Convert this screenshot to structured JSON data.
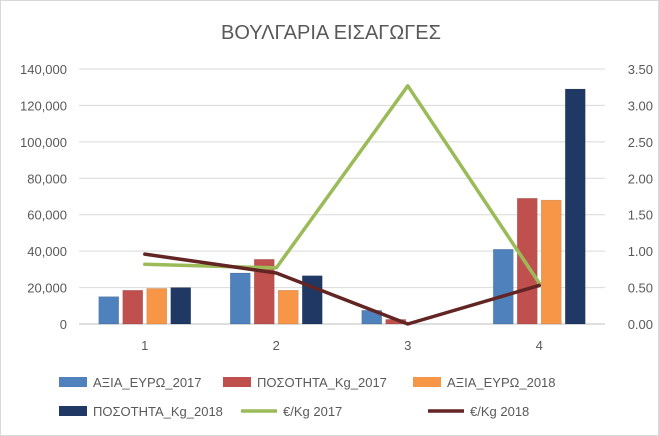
{
  "chart_data": {
    "type": "bar",
    "title": "ΒΟΥΛΓΑΡΙΑ ΕΙΣΑΓΩΓΕΣ",
    "categories": [
      "1",
      "2",
      "3",
      "4"
    ],
    "y_left": {
      "min": 0,
      "max": 140000,
      "ticks": [
        0,
        20000,
        40000,
        60000,
        80000,
        100000,
        120000,
        140000
      ],
      "tick_labels": [
        "0",
        "20,000",
        "40,000",
        "60,000",
        "80,000",
        "100,000",
        "120,000",
        "140,000"
      ]
    },
    "y_right": {
      "min": 0,
      "max": 3.5,
      "ticks": [
        0,
        0.5,
        1,
        1.5,
        2,
        2.5,
        3,
        3.5
      ],
      "tick_labels": [
        "0.00",
        "0.50",
        "1.00",
        "1.50",
        "2.00",
        "2.50",
        "3.00",
        "3.50"
      ]
    },
    "grid": true,
    "legend_position": "bottom",
    "series": [
      {
        "name": "ΑΞΙΑ_ΕΥΡΩ_2017",
        "kind": "bar",
        "axis": "left",
        "color": "#4f81bd",
        "values": [
          15000,
          28000,
          7500,
          41000
        ]
      },
      {
        "name": "ΠΟΣΟΤΗΤΑ_Kg_2017",
        "kind": "bar",
        "axis": "left",
        "color": "#c0504d",
        "values": [
          18500,
          35500,
          2500,
          69000
        ]
      },
      {
        "name": "ΑΞΙΑ_ΕΥΡΩ_2018",
        "kind": "bar",
        "axis": "left",
        "color": "#f79646",
        "values": [
          19500,
          18500,
          0,
          68000
        ]
      },
      {
        "name": "ΠΟΣΟΤΗΤΑ_Kg_2018",
        "kind": "bar",
        "axis": "left",
        "color": "#1f3864",
        "values": [
          20000,
          26500,
          0,
          129000
        ]
      },
      {
        "name": "€/Kg 2017",
        "kind": "line",
        "axis": "right",
        "color": "#9bbb59",
        "values": [
          0.82,
          0.77,
          3.27,
          0.56
        ]
      },
      {
        "name": "€/Kg 2018",
        "kind": "line",
        "axis": "right",
        "color": "#632523",
        "values": [
          0.96,
          0.7,
          0.0,
          0.53
        ]
      }
    ]
  }
}
